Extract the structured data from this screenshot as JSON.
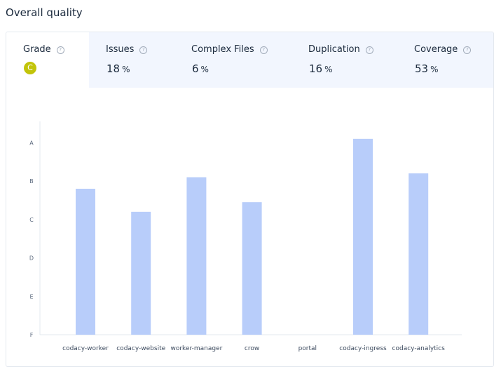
{
  "page": {
    "title": "Overall quality"
  },
  "tabs": [
    {
      "label": "Grade",
      "grade": "C"
    },
    {
      "label": "Issues",
      "value": "18",
      "unit": "%"
    },
    {
      "label": "Complex Files",
      "value": "6",
      "unit": "%"
    },
    {
      "label": "Duplication",
      "value": "16",
      "unit": "%"
    },
    {
      "label": "Coverage",
      "value": "53",
      "unit": "%"
    }
  ],
  "colors": {
    "bar": "#b8cdfa",
    "grade_c": "#c2c40a",
    "tab_bg": "#f2f6fe"
  },
  "chart_data": {
    "type": "bar",
    "categories": [
      "codacy-worker",
      "codacy-website",
      "worker-manager",
      "crow",
      "portal",
      "codacy-ingress",
      "codacy-analytics"
    ],
    "values": [
      3.8,
      3.2,
      4.1,
      3.45,
      null,
      5.1,
      4.2
    ],
    "y_ticks": [
      "F",
      "E",
      "D",
      "C",
      "B",
      "A"
    ],
    "ylim": [
      0,
      5.7
    ],
    "grid": false
  }
}
